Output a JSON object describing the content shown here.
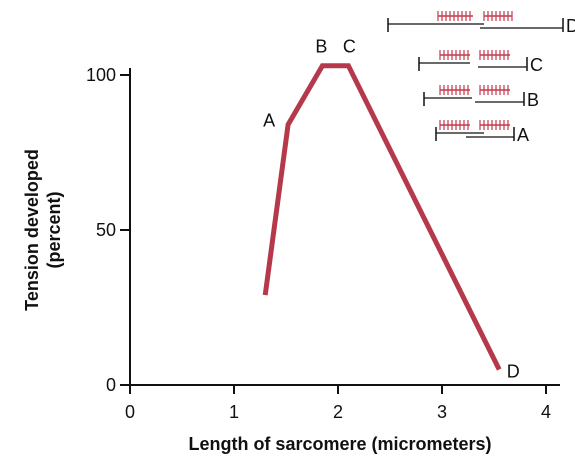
{
  "chart_data": {
    "type": "line",
    "xlabel": "Length of sarcomere (micrometers)",
    "ylabel_line1": "Tension developed",
    "ylabel_line2": "(percent)",
    "xlim": [
      0,
      4
    ],
    "ylim": [
      0,
      100
    ],
    "xticks": [
      "0",
      "1",
      "2",
      "3",
      "4"
    ],
    "yticks": [
      "0",
      "50",
      "100"
    ],
    "series": [
      {
        "color": "#b5394a",
        "points": [
          {
            "x": 1.3,
            "y": 29
          },
          {
            "x": 1.52,
            "y": 84
          },
          {
            "x": 1.85,
            "y": 103
          },
          {
            "x": 2.1,
            "y": 103
          },
          {
            "x": 3.55,
            "y": 5
          }
        ]
      }
    ],
    "point_labels": [
      {
        "label": "A",
        "x": 1.52,
        "y": 84
      },
      {
        "label": "B",
        "x": 1.85,
        "y": 103
      },
      {
        "label": "C",
        "x": 2.1,
        "y": 103
      },
      {
        "label": "D",
        "x": 3.55,
        "y": 5
      }
    ],
    "inset_labels": [
      "D",
      "C",
      "B",
      "A"
    ],
    "grid": false
  },
  "colors": {
    "curve": "#b5394a",
    "axis": "#111111",
    "filament_red": "#c23a4c"
  }
}
